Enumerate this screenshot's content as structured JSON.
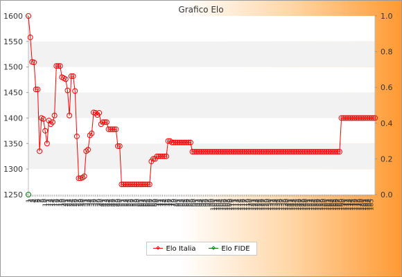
{
  "chart_data": {
    "type": "line",
    "title": "Grafico Elo",
    "ylim_left": [
      1250,
      1600
    ],
    "yticks_left": [
      "1250",
      "1300",
      "1350",
      "1400",
      "1450",
      "1500",
      "1550",
      "1600"
    ],
    "ylim_right": [
      0.0,
      1.0
    ],
    "yticks_right": [
      "0.0",
      "0.2",
      "0.4",
      "0.6",
      "0.8",
      "1.0"
    ],
    "grid": "horizontal bands",
    "legend_position": "bottom-center",
    "series": [
      {
        "name": "Elo Italia",
        "color": "#ff0000",
        "values": [
          1600,
          1558,
          1510,
          1509,
          1456,
          1456,
          1335,
          1400,
          1398,
          1375,
          1350,
          1395,
          1388,
          1392,
          1405,
          1502,
          1502,
          1502,
          1480,
          1478,
          1476,
          1454,
          1405,
          1482,
          1482,
          1453,
          1364,
          1282,
          1282,
          1283,
          1286,
          1335,
          1338,
          1366,
          1370,
          1411,
          1410,
          1406,
          1410,
          1388,
          1392,
          1392,
          1392,
          1378,
          1378,
          1378,
          1378,
          1378,
          1345,
          1345,
          1270,
          1270,
          1270,
          1270,
          1270,
          1270,
          1270,
          1270,
          1270,
          1270,
          1270,
          1270,
          1270,
          1270,
          1270,
          1270,
          1315,
          1320,
          1320,
          1325,
          1325,
          1325,
          1325,
          1325,
          1325,
          1355,
          1355,
          1352,
          1352,
          1352,
          1352,
          1352,
          1352,
          1352,
          1352,
          1352,
          1352,
          1352,
          1334,
          1334,
          1334,
          1334,
          1334,
          1334,
          1334,
          1334,
          1334,
          1334,
          1334,
          1334,
          1334,
          1334,
          1334,
          1334,
          1334,
          1334,
          1334,
          1334,
          1334,
          1334,
          1334,
          1334,
          1334,
          1334,
          1334,
          1334,
          1334,
          1334,
          1334,
          1334,
          1334,
          1334,
          1334,
          1334,
          1334,
          1334,
          1334,
          1334,
          1334,
          1334,
          1334,
          1334,
          1334,
          1334,
          1334,
          1334,
          1334,
          1334,
          1334,
          1334,
          1334,
          1334,
          1334,
          1334,
          1334,
          1334,
          1334,
          1334,
          1334,
          1334,
          1334,
          1334,
          1334,
          1334,
          1334,
          1334,
          1334,
          1334,
          1334,
          1334,
          1334,
          1334,
          1334,
          1334,
          1334,
          1334,
          1334,
          1334,
          1400,
          1400,
          1400,
          1400,
          1400,
          1400,
          1400,
          1400,
          1400,
          1400,
          1400,
          1400,
          1400,
          1400,
          1400,
          1400,
          1400,
          1400,
          1400
        ]
      },
      {
        "name": "Elo FIDE",
        "color": "#008000",
        "values": [
          1250
        ]
      }
    ],
    "x_tick_labels": [
      "1",
      "2",
      "3",
      "4",
      "5",
      "6",
      "7",
      "8",
      "9",
      "10",
      "11",
      "12",
      "13",
      "14",
      "15",
      "16",
      "17",
      "18",
      "19",
      "20",
      "21",
      "22",
      "23",
      "24",
      "25",
      "26",
      "27",
      "28",
      "29",
      "30",
      "31",
      "32",
      "33",
      "34",
      "35",
      "36",
      "37",
      "38",
      "39",
      "40",
      "41",
      "42",
      "43",
      "44",
      "45",
      "46",
      "47",
      "48",
      "49",
      "50",
      "51",
      "52",
      "53",
      "54",
      "55",
      "56",
      "57",
      "58",
      "59",
      "60",
      "61",
      "62",
      "63",
      "64",
      "65",
      "66",
      "67",
      "68",
      "69",
      "70",
      "71",
      "72",
      "73",
      "74",
      "75",
      "76",
      "77",
      "78",
      "79",
      "80",
      "81",
      "82",
      "83",
      "84",
      "85",
      "86",
      "87",
      "88",
      "89",
      "90",
      "91",
      "92",
      "93",
      "94",
      "95",
      "96",
      "97",
      "98",
      "99",
      "100",
      "101",
      "102",
      "103",
      "104",
      "105",
      "106",
      "107",
      "108",
      "109",
      "110",
      "111",
      "112",
      "113",
      "114",
      "115",
      "116",
      "117",
      "118",
      "119",
      "120",
      "121",
      "122",
      "123",
      "124",
      "125",
      "126",
      "127",
      "128",
      "129",
      "130",
      "131",
      "132",
      "133",
      "134",
      "135",
      "136",
      "137",
      "138",
      "139",
      "140",
      "141",
      "142",
      "143",
      "144",
      "145",
      "146",
      "147",
      "148",
      "149",
      "150",
      "151",
      "152",
      "153",
      "154",
      "155",
      "156",
      "157",
      "158",
      "159",
      "160",
      "161",
      "162",
      "163",
      "164",
      "165",
      "166",
      "167",
      "168",
      "169",
      "170",
      "171",
      "172",
      "173",
      "174",
      "175",
      "176",
      "177",
      "178",
      "179",
      "180",
      "181",
      "182",
      "183",
      "184",
      "185"
    ]
  }
}
